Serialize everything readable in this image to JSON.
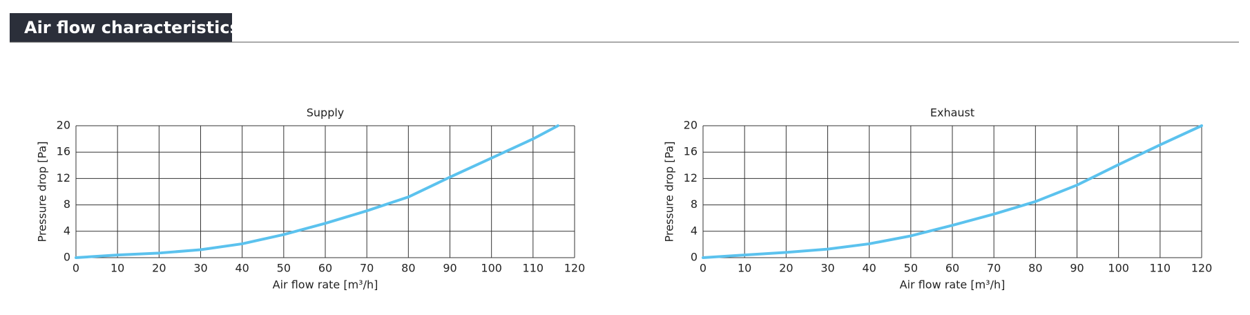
{
  "header": {
    "title": "Air flow characteristics"
  },
  "chart_data": [
    {
      "type": "line",
      "title": "Supply",
      "x_label": "Air flow rate [m³/h]",
      "y_label": "Pressure drop [Pa]",
      "series": [
        {
          "name": "Supply",
          "color": "#5bc2ee",
          "x": [
            0,
            10,
            20,
            30,
            40,
            50,
            60,
            70,
            80,
            90,
            100,
            110,
            116
          ],
          "values": [
            0,
            0.4,
            0.7,
            1.2,
            2.1,
            3.5,
            5.2,
            7.1,
            9.2,
            12.2,
            15.1,
            18,
            20
          ]
        }
      ],
      "xlim": [
        0,
        120
      ],
      "xticks": [
        0,
        10,
        20,
        30,
        40,
        50,
        60,
        70,
        80,
        90,
        100,
        110,
        120
      ],
      "ylim": [
        0,
        20
      ],
      "yticks": [
        0,
        4,
        8,
        12,
        16,
        20
      ],
      "grid": true
    },
    {
      "type": "line",
      "title": "Exhaust",
      "x_label": "Air flow rate [m³/h]",
      "y_label": "Pressure drop [Pa]",
      "series": [
        {
          "name": "Exhaust",
          "color": "#5bc2ee",
          "x": [
            0,
            10,
            20,
            30,
            40,
            50,
            60,
            70,
            80,
            90,
            100,
            110,
            120
          ],
          "values": [
            0,
            0.4,
            0.8,
            1.3,
            2.1,
            3.3,
            4.9,
            6.6,
            8.5,
            11,
            14.1,
            17.1,
            20
          ]
        }
      ],
      "xlim": [
        0,
        120
      ],
      "xticks": [
        0,
        10,
        20,
        30,
        40,
        50,
        60,
        70,
        80,
        90,
        100,
        110,
        120
      ],
      "ylim": [
        0,
        20
      ],
      "yticks": [
        0,
        4,
        8,
        12,
        16,
        20
      ],
      "grid": true
    }
  ]
}
